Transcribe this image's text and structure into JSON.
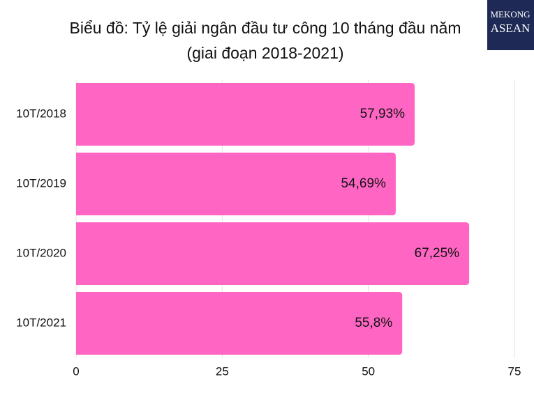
{
  "chart_data": {
    "type": "bar",
    "orientation": "horizontal",
    "title": "Biểu đồ: Tỷ lệ giải ngân đầu tư công 10 tháng đầu năm",
    "subtitle": "(giai đoạn 2018-2021)",
    "categories": [
      "10T/2018",
      "10T/2019",
      "10T/2020",
      "10T/2021"
    ],
    "values": [
      57.93,
      54.69,
      67.25,
      55.8
    ],
    "value_labels": [
      "57,93%",
      "54,69%",
      "67,25%",
      "55,8%"
    ],
    "color": "#ff66c4",
    "xlim": [
      0,
      75
    ],
    "xticks": [
      0,
      25,
      50,
      75
    ],
    "grid": true
  },
  "logo": {
    "line1": "MEKONG",
    "line2": "ASEAN"
  }
}
